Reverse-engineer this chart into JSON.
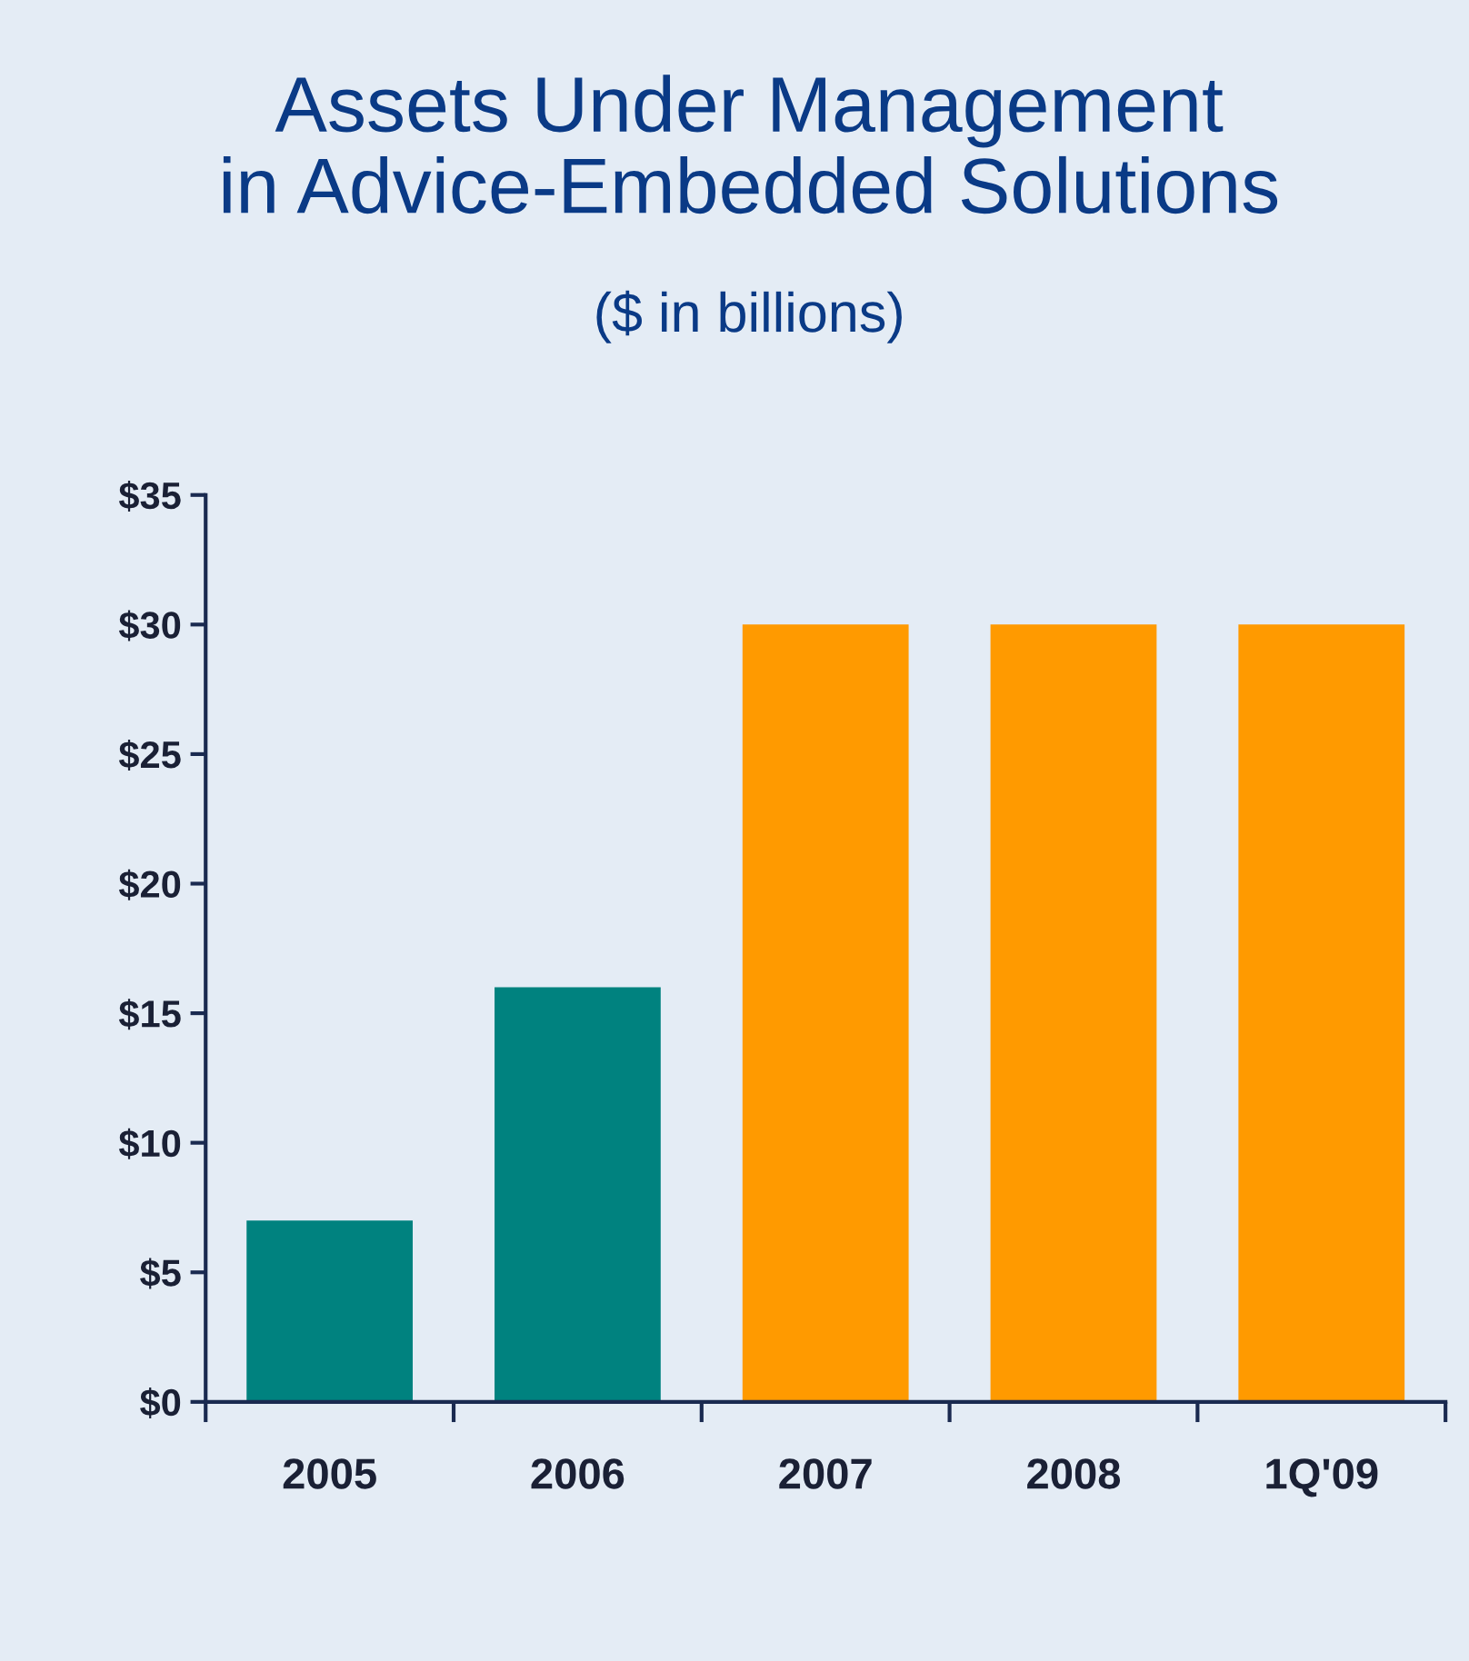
{
  "chart_data": {
    "type": "bar",
    "title": "Assets Under Management\nin Advice-Embedded Solutions",
    "subtitle": "($ in billions)",
    "categories": [
      "2005",
      "2006",
      "2007",
      "2008",
      "1Q'09"
    ],
    "values": [
      7,
      16,
      30,
      30,
      30
    ],
    "colors": [
      "#00827f",
      "#00827f",
      "#ff9a00",
      "#ff9a00",
      "#ff9a00"
    ],
    "ylim": [
      0,
      35
    ],
    "yticks": [
      {
        "value": 0,
        "label": "$0"
      },
      {
        "value": 5,
        "label": "$5"
      },
      {
        "value": 10,
        "label": "$10"
      },
      {
        "value": 15,
        "label": "$15"
      },
      {
        "value": 20,
        "label": "$20"
      },
      {
        "value": 25,
        "label": "$25"
      },
      {
        "value": 30,
        "label": "$30"
      },
      {
        "value": 35,
        "label": "$35"
      }
    ],
    "grid": false,
    "legend": false
  }
}
